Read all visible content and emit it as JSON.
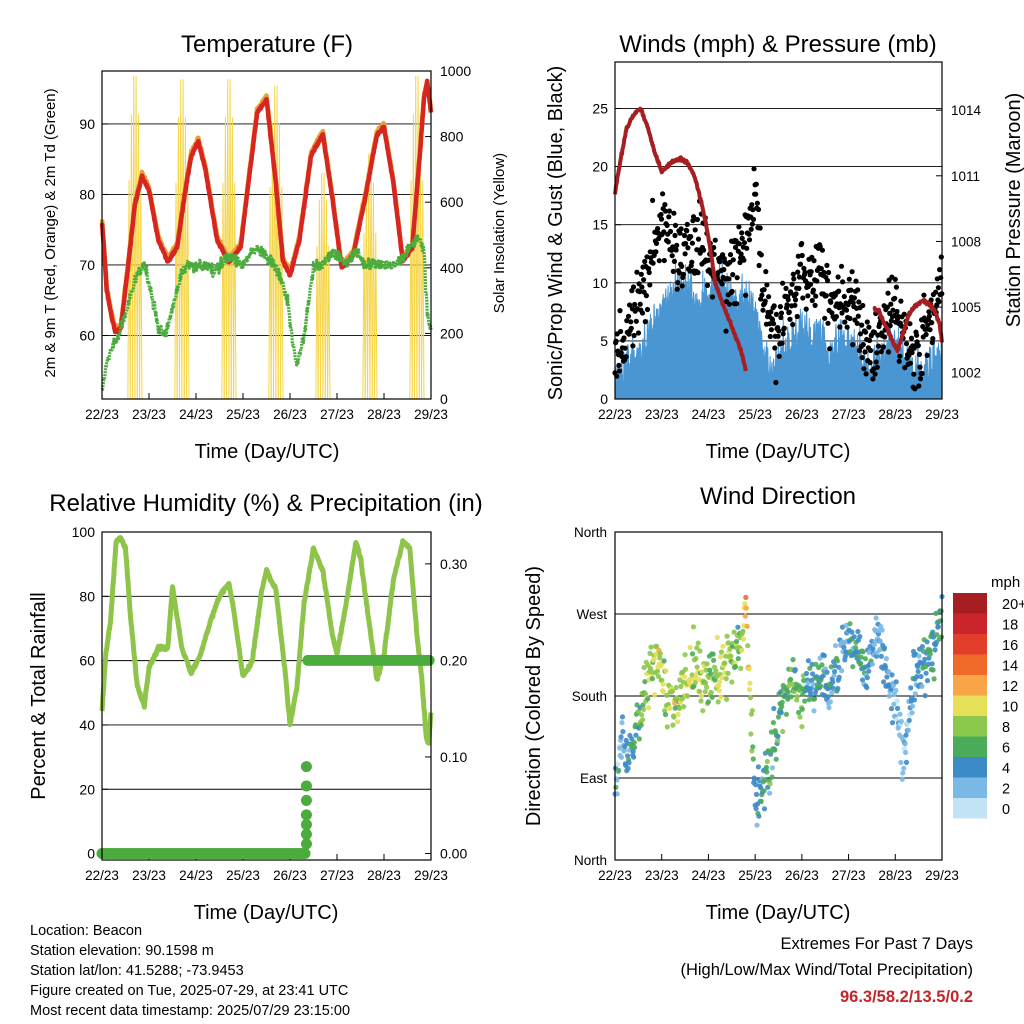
{
  "info": {
    "location": "Location: Beacon",
    "elevation": "Station elevation: 90.1598 m",
    "latlon": "Station lat/lon: 41.5288; -73.9453",
    "created": "Figure created on Tue, 2025-07-29, at 23:41 UTC",
    "recent": "Most recent data timestamp: 2025/07/29 23:15:00"
  },
  "extremes": {
    "heading": "Extremes For Past 7 Days",
    "subheading": "(High/Low/Max Wind/Total Precipitation)",
    "values": "96.3/58.2/13.5/0.2",
    "value_color": "#c0262b"
  },
  "chart_data": [
    {
      "type": "line",
      "title": "Temperature (F)",
      "xlabel": "Time (Day/UTC)",
      "ylabel": "2m & 9m T (Red, Orange) & 2m Td (Green)",
      "ylabel_right": "Solar Insolation (Yellow)",
      "x_ticks": [
        "22/23",
        "23/23",
        "24/23",
        "25/23",
        "26/23",
        "27/23",
        "28/23",
        "29/23"
      ],
      "x_range": [
        0,
        7
      ],
      "ylim": [
        51,
        97.5
      ],
      "y_ticks": [
        60,
        70,
        80,
        90
      ],
      "ylim_right": [
        0,
        1000
      ],
      "y_ticks_right": [
        0,
        200,
        400,
        600,
        800,
        1000
      ],
      "grid": true,
      "series": [
        {
          "color": "#e8a13b",
          "axis": "left",
          "x": [
            0,
            0.05,
            0.1,
            0.18,
            0.28,
            0.4,
            0.55,
            0.7,
            0.85,
            1.0,
            1.2,
            1.4,
            1.6,
            1.75,
            1.9,
            2.05,
            2.2,
            2.45,
            2.7,
            2.95,
            3.15,
            3.3,
            3.5,
            3.7,
            3.85,
            4.0,
            4.2,
            4.45,
            4.7,
            4.9,
            5.1,
            5.35,
            5.6,
            5.85,
            6.0,
            6.2,
            6.4,
            6.6,
            6.75,
            6.85,
            6.92,
            7.0
          ],
          "y": [
            76.5,
            72,
            67,
            64,
            61,
            61.5,
            70,
            79,
            83,
            81,
            74,
            71,
            73,
            80,
            86,
            88,
            84,
            74,
            71,
            73,
            84,
            92,
            94,
            82,
            71,
            69,
            74,
            86,
            89,
            80,
            70,
            72,
            80,
            89,
            90,
            82,
            71,
            73,
            85,
            94,
            96,
            92
          ]
        },
        {
          "color": "#d7251f",
          "axis": "left",
          "x": [
            0,
            0.05,
            0.1,
            0.18,
            0.28,
            0.4,
            0.55,
            0.7,
            0.85,
            1.0,
            1.2,
            1.4,
            1.6,
            1.75,
            1.9,
            2.05,
            2.2,
            2.45,
            2.7,
            2.95,
            3.15,
            3.3,
            3.5,
            3.7,
            3.85,
            4.0,
            4.2,
            4.45,
            4.7,
            4.9,
            5.1,
            5.35,
            5.6,
            5.85,
            6.0,
            6.2,
            6.4,
            6.6,
            6.75,
            6.85,
            6.92,
            7.0
          ],
          "y": [
            76,
            71.5,
            66.5,
            63.5,
            60.5,
            61,
            69.5,
            78.5,
            82.5,
            80.5,
            73.5,
            70.5,
            72.5,
            79.5,
            85.5,
            87.5,
            83.5,
            73.5,
            70.5,
            72.5,
            83.5,
            91.5,
            93.5,
            81.5,
            70.5,
            68.5,
            73.5,
            85.5,
            88.5,
            79.5,
            69.5,
            71.5,
            79.5,
            88.5,
            89.5,
            81.5,
            70.5,
            72.5,
            84.5,
            93.5,
            96,
            91.5
          ]
        },
        {
          "color": "#4aac3c",
          "axis": "left",
          "x": [
            0,
            0.1,
            0.2,
            0.35,
            0.5,
            0.7,
            0.9,
            1.05,
            1.2,
            1.35,
            1.5,
            1.7,
            1.85,
            2.0,
            2.2,
            2.4,
            2.6,
            2.8,
            3.0,
            3.2,
            3.35,
            3.5,
            3.65,
            3.8,
            3.95,
            4.05,
            4.15,
            4.3,
            4.5,
            4.7,
            4.9,
            5.05,
            5.2,
            5.4,
            5.6,
            5.8,
            6.0,
            6.2,
            6.4,
            6.6,
            6.75,
            6.85,
            6.92,
            7.0
          ],
          "y": [
            52,
            56,
            58,
            60,
            63,
            68,
            70,
            66,
            61,
            60,
            64,
            69,
            70,
            70,
            70,
            69,
            71,
            71,
            70,
            72,
            72,
            71,
            70,
            68,
            65,
            59,
            56,
            60,
            70,
            70,
            72,
            71,
            70,
            72,
            70,
            70,
            70,
            70,
            71,
            73,
            74,
            72,
            63,
            61
          ]
        }
      ],
      "insolation": {
        "color": "#f5d54a",
        "days": [
          0,
          1,
          2,
          3,
          4,
          5,
          6
        ],
        "peaks": [
          1000,
          990,
          990,
          970,
          700,
          760,
          1000
        ]
      }
    },
    {
      "type": "scatter",
      "title": "Winds (mph) & Pressure (mb)",
      "xlabel": "Time (Day/UTC)",
      "ylabel": "Sonic/Prop Wind & Gust (Blue, Black)",
      "ylabel_right": "Station Pressure (Maroon)",
      "x_ticks": [
        "22/23",
        "23/23",
        "24/23",
        "25/23",
        "26/23",
        "27/23",
        "28/23",
        "29/23"
      ],
      "ylim": [
        0,
        29
      ],
      "y_ticks": [
        0,
        5,
        10,
        15,
        20,
        25
      ],
      "ylim_right": [
        1000.8,
        1016.2
      ],
      "y_ticks_right": [
        1002,
        1005,
        1008,
        1011,
        1014
      ],
      "grid": true,
      "series": [
        {
          "name": "wind",
          "color": "#4a96d2",
          "x": [
            0,
            0.3,
            0.6,
            0.8,
            1.0,
            1.2,
            1.4,
            1.6,
            1.8,
            2.0,
            2.2,
            2.4,
            2.6,
            2.8,
            3.0,
            3.2,
            3.4,
            3.6,
            3.8,
            4.0,
            4.2,
            4.4,
            4.6,
            4.8,
            5.0,
            5.2,
            5.4,
            5.6,
            5.8,
            6.0,
            6.2,
            6.4,
            6.6,
            6.8,
            7.0
          ],
          "y": [
            2,
            3,
            4,
            6,
            8,
            9,
            10,
            9,
            8,
            9,
            10,
            9,
            8,
            9,
            7,
            3,
            2,
            4,
            5,
            6,
            5,
            6,
            4,
            5,
            5,
            4,
            2,
            3,
            4,
            5,
            3,
            2,
            2,
            3,
            4
          ]
        },
        {
          "name": "gust",
          "color": "#000000",
          "x": [
            0,
            0.3,
            0.6,
            0.8,
            1.0,
            1.2,
            1.4,
            1.6,
            1.8,
            2.0,
            2.2,
            2.4,
            2.6,
            2.8,
            3.0,
            3.2,
            3.4,
            3.6,
            3.8,
            4.0,
            4.2,
            4.4,
            4.6,
            4.8,
            5.0,
            5.2,
            5.4,
            5.6,
            5.8,
            6.0,
            6.2,
            6.4,
            6.6,
            6.8,
            7.0
          ],
          "y": [
            4,
            6,
            9,
            13,
            15,
            14,
            12,
            13,
            14,
            12,
            11,
            10,
            12,
            13,
            18,
            8,
            5,
            7,
            9,
            11,
            10,
            12,
            8,
            9,
            8,
            7,
            4,
            5,
            7,
            8,
            5,
            4,
            5,
            7,
            10
          ]
        },
        {
          "name": "pressure",
          "color": "#a51e22",
          "axis": "right",
          "x": [
            0,
            0.1,
            0.25,
            0.4,
            0.55,
            0.7,
            0.85,
            1.0,
            1.2,
            1.4,
            1.55,
            1.7,
            1.85,
            2.0,
            2.15,
            2.3,
            2.5,
            2.7,
            2.8
          ],
          "y": [
            1010.2,
            1011.5,
            1013.2,
            1013.8,
            1014.1,
            1013.2,
            1012.1,
            1011.2,
            1011.6,
            1011.8,
            1011.6,
            1011,
            1009.8,
            1008.2,
            1006.1,
            1005.2,
            1004.1,
            1003,
            1002.1
          ]
        },
        {
          "name": "pressure",
          "color": "#a51e22",
          "axis": "right",
          "x": [
            5.55,
            5.65,
            5.75,
            5.85,
            5.95,
            6.05,
            6.15,
            6.3,
            6.45,
            6.6,
            6.75,
            6.85,
            6.95,
            7.0
          ],
          "y": [
            1004.9,
            1004.8,
            1004.3,
            1003.9,
            1003.4,
            1003,
            1003.7,
            1004.7,
            1005.1,
            1005.3,
            1005.1,
            1004.8,
            1004.2,
            1003.4
          ]
        }
      ]
    },
    {
      "type": "line",
      "title": "Relative Humidity (%) & Precipitation (in)",
      "xlabel": "Time (Day/UTC)",
      "ylabel": "Percent & Total Rainfall",
      "x_ticks": [
        "22/23",
        "23/23",
        "24/23",
        "25/23",
        "26/23",
        "27/23",
        "28/23",
        "29/23"
      ],
      "ylim": [
        -2,
        100
      ],
      "y_ticks": [
        0,
        20,
        40,
        60,
        80,
        100
      ],
      "ylim_right": [
        -0.0067,
        0.333
      ],
      "y_ticks_right": [
        "0.00",
        "0.10",
        "0.20",
        "0.30"
      ],
      "grid": true,
      "series": [
        {
          "name": "RH",
          "color": "#8fc44a",
          "x": [
            0,
            0.08,
            0.18,
            0.3,
            0.4,
            0.5,
            0.6,
            0.75,
            0.9,
            1.0,
            1.2,
            1.4,
            1.5,
            1.7,
            1.9,
            2.1,
            2.3,
            2.5,
            2.7,
            2.8,
            3.0,
            3.2,
            3.4,
            3.5,
            3.7,
            3.9,
            4.0,
            4.15,
            4.3,
            4.5,
            4.7,
            4.9,
            5.0,
            5.2,
            5.4,
            5.5,
            5.7,
            5.85,
            6.0,
            6.2,
            6.4,
            6.55,
            6.7,
            6.8,
            6.9,
            6.95,
            7.0
          ],
          "y": [
            44,
            62,
            72,
            97,
            98,
            95,
            75,
            52,
            46,
            58,
            64,
            64,
            83,
            64,
            56,
            62,
            72,
            80,
            84,
            76,
            55,
            60,
            82,
            88,
            82,
            56,
            40,
            52,
            78,
            95,
            88,
            68,
            62,
            78,
            97,
            92,
            70,
            54,
            62,
            85,
            97,
            95,
            68,
            55,
            36,
            34,
            44
          ]
        },
        {
          "name": "Precip",
          "color": "#4aac3c",
          "axis": "right",
          "x": [
            0,
            4.35,
            4.35,
            4.38,
            4.38,
            7.0
          ],
          "y": [
            0,
            0,
            0.09,
            0.09,
            0.2,
            0.2
          ]
        }
      ]
    },
    {
      "type": "scatter",
      "title": "Wind Direction",
      "xlabel": "Time (Day/UTC)",
      "ylabel": "Direction (Colored By Speed)",
      "x_ticks": [
        "22/23",
        "23/23",
        "24/23",
        "25/23",
        "26/23",
        "27/23",
        "28/23",
        "29/23"
      ],
      "y_ticks": [
        "North",
        "East",
        "South",
        "West",
        "North"
      ],
      "ylim": [
        0,
        360
      ],
      "grid": true,
      "legend": {
        "title": "mph",
        "labels": [
          "20+",
          "18",
          "16",
          "14",
          "12",
          "10",
          "8",
          "6",
          "4",
          "2",
          "0"
        ],
        "colors": [
          "#a51e22",
          "#c9252b",
          "#e33e2b",
          "#f06a2a",
          "#f7a546",
          "#e6df58",
          "#8cc84b",
          "#4aab5a",
          "#3d8bc6",
          "#7ab8e5",
          "#c2e3f5"
        ],
        "placement": "right"
      },
      "series": [
        {
          "name": "direction",
          "x": [
            0.05,
            0.15,
            0.3,
            0.5,
            0.7,
            0.9,
            1.1,
            1.3,
            1.5,
            1.7,
            1.9,
            2.1,
            2.3,
            2.5,
            2.7,
            2.8,
            3.0,
            3.2,
            3.4,
            3.6,
            3.8,
            4.0,
            4.2,
            4.4,
            4.6,
            4.8,
            5.0,
            5.2,
            5.4,
            5.6,
            5.8,
            6.0,
            6.2,
            6.4,
            6.6,
            6.8,
            7.0
          ],
          "y": [
            85,
            140,
            110,
            150,
            200,
            220,
            180,
            175,
            190,
            215,
            195,
            200,
            210,
            220,
            240,
            280,
            60,
            80,
            130,
            180,
            195,
            180,
            200,
            210,
            190,
            220,
            240,
            225,
            205,
            260,
            210,
            170,
            110,
            200,
            210,
            230,
            270
          ],
          "speed": [
            3,
            2,
            4,
            6,
            8,
            9,
            8,
            9,
            8,
            9,
            8,
            7,
            9,
            8,
            7,
            12,
            4,
            5,
            5,
            6,
            6,
            7,
            4,
            5,
            4,
            3,
            4,
            5,
            4,
            3,
            4,
            3,
            2,
            4,
            4,
            5,
            6
          ]
        }
      ]
    }
  ]
}
